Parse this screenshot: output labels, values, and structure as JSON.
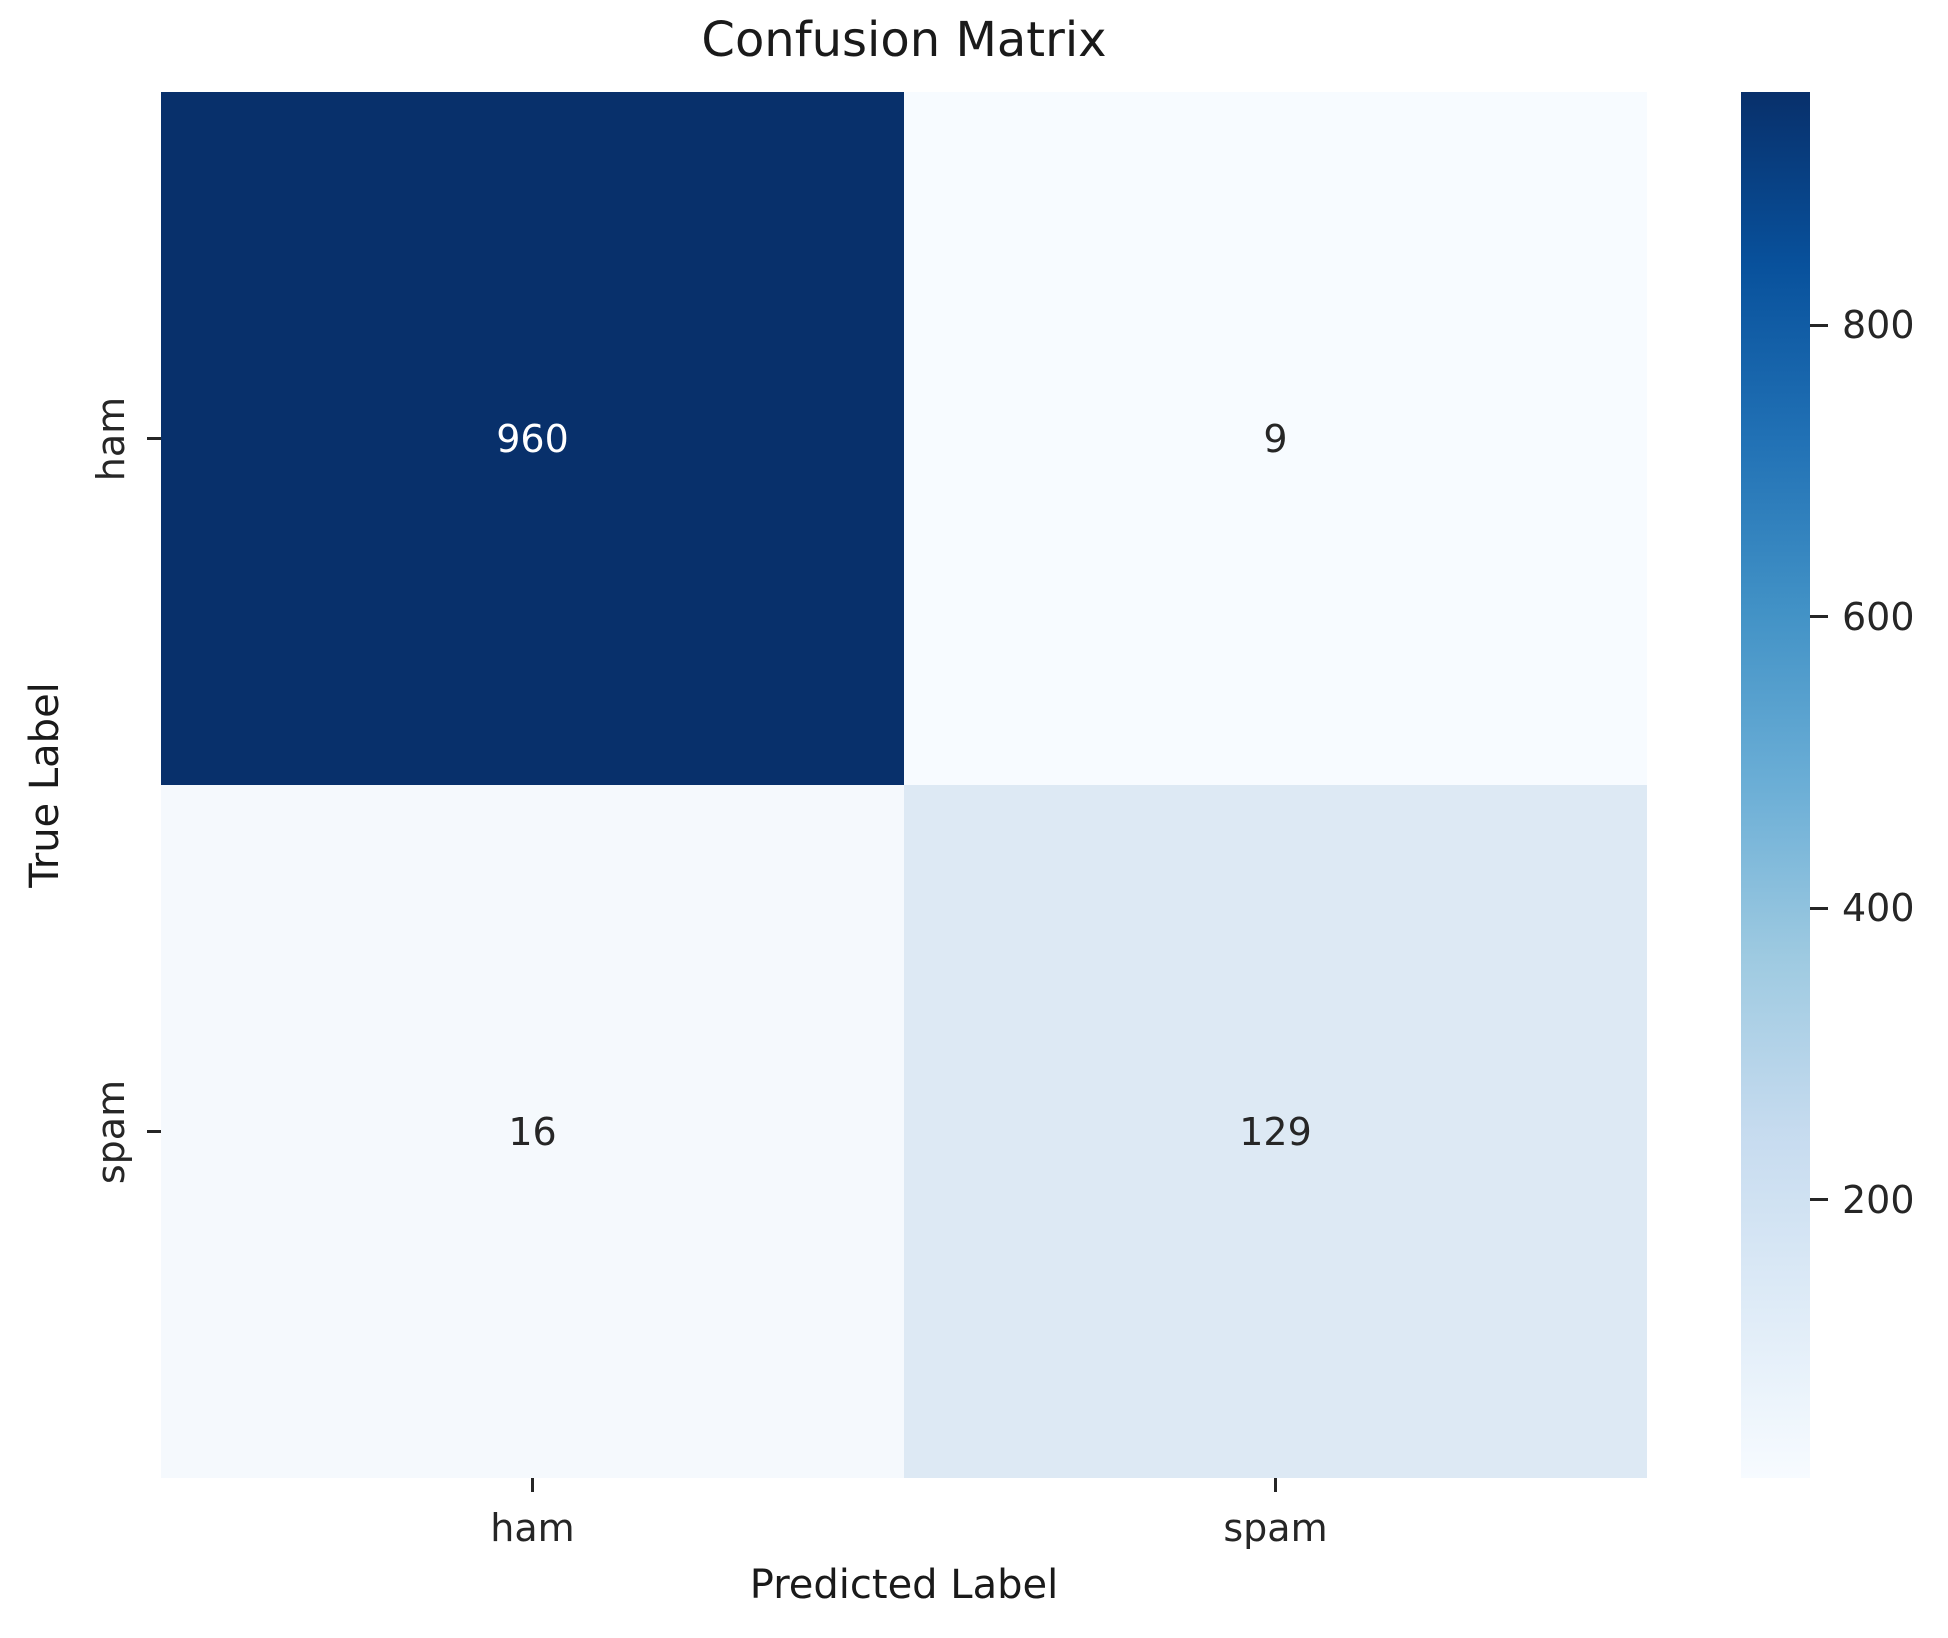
{
  "chart_data": {
    "type": "heatmap",
    "title": "Confusion Matrix",
    "xlabel": "Predicted Label",
    "ylabel": "True Label",
    "x_categories": [
      "ham",
      "spam"
    ],
    "y_categories": [
      "ham",
      "spam"
    ],
    "matrix": [
      [
        960,
        9
      ],
      [
        16,
        129
      ]
    ],
    "vmin": 9,
    "vmax": 960,
    "colormap": "Blues",
    "grid": "off",
    "legend_position": "right-colorbar",
    "colorbar_ticks": [
      200,
      400,
      600,
      800
    ],
    "cell_colors": [
      [
        "#08306b",
        "#f7fbff"
      ],
      [
        "#f5f9fd",
        "#dde9f4"
      ]
    ],
    "cell_text_colors": [
      [
        "#ffffff",
        "#262626"
      ],
      [
        "#262626",
        "#262626"
      ]
    ],
    "colorbar_gradient_bottom_to_top": [
      "#f7fbff",
      "#deebf7",
      "#c6dbef",
      "#9ecae1",
      "#6baed6",
      "#4292c6",
      "#2171b5",
      "#08519c",
      "#08306b"
    ]
  }
}
